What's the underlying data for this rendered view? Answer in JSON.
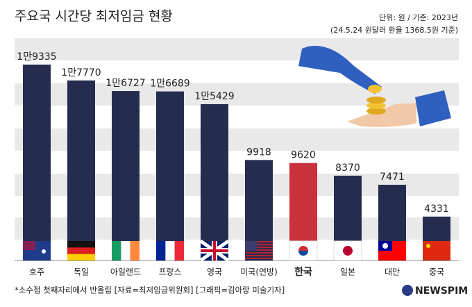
{
  "chart_data": {
    "type": "bar",
    "title": "주요국 시간당 최저임금 현황",
    "subtitle": [
      "단위: 원 / 기준: 2023년",
      "(24.5.24 원달러 환율 1368.5원 기준)"
    ],
    "categories": [
      "호주",
      "독일",
      "아일랜드",
      "프랑스",
      "영국",
      "미국(연방)",
      "한국",
      "일본",
      "대만",
      "중국"
    ],
    "values": [
      19335,
      17770,
      16727,
      16689,
      15429,
      9918,
      9620,
      8370,
      7471,
      4331
    ],
    "value_labels": [
      "1만9335",
      "1만7770",
      "1만6727",
      "1만6689",
      "1만5429",
      "9918",
      "9620",
      "8370",
      "7471",
      "4331"
    ],
    "colors": [
      "#252d4f",
      "#252d4f",
      "#252d4f",
      "#252d4f",
      "#252d4f",
      "#252d4f",
      "#c9313d",
      "#252d4f",
      "#252d4f",
      "#252d4f"
    ],
    "footnote": "*소수점 첫째자리에서 반올림 [자료=최저임금위원회] [그래픽=김아랑 미술기자]",
    "source_logo": "NEWSPIM"
  }
}
